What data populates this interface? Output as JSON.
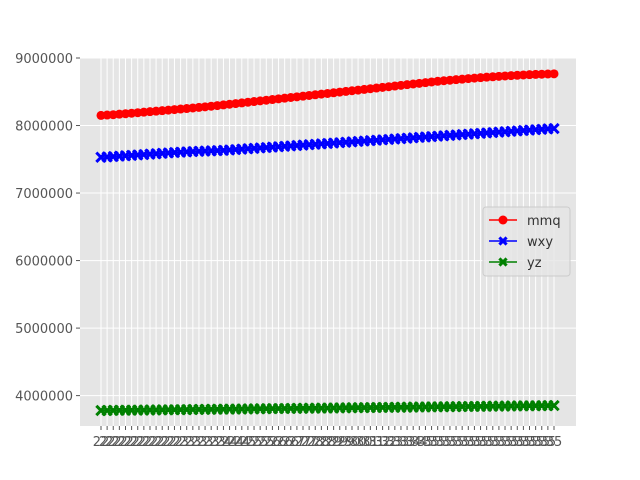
{
  "chart_data": {
    "type": "line",
    "title": "",
    "xlabel": "",
    "ylabel": "",
    "ylim": [
      3550000,
      9000000
    ],
    "yticks": [
      4000000,
      5000000,
      6000000,
      7000000,
      8000000,
      9000000
    ],
    "ytick_labels": [
      "4000000",
      "5000000",
      "6000000",
      "7000000",
      "8000000",
      "9000000"
    ],
    "x": [
      "22",
      "22",
      "22",
      "22",
      "22",
      "22",
      "22",
      "22",
      "22",
      "22",
      "22",
      "22",
      "22",
      "23",
      "23",
      "23",
      "23",
      "23",
      "23",
      "23",
      "24",
      "24",
      "24",
      "24",
      "25",
      "25",
      "25",
      "25",
      "26",
      "26",
      "26",
      "26",
      "27",
      "27",
      "27",
      "28",
      "28",
      "28",
      "29",
      "29",
      "29",
      "30",
      "30",
      "30",
      "31",
      "31",
      "32",
      "32",
      "33",
      "33",
      "33",
      "34",
      "34",
      "35",
      "35",
      "35",
      "35",
      "35",
      "35",
      "35",
      "35",
      "35",
      "35",
      "35",
      "35",
      "35",
      "35",
      "35",
      "35",
      "35",
      "35",
      "35",
      "35",
      "35",
      "35"
    ],
    "grid": true,
    "legend_position": "center-right",
    "series": [
      {
        "name": "mmq",
        "color": "#ff0000",
        "marker": "circle",
        "values": [
          8150000,
          8155000,
          8160000,
          8168000,
          8175000,
          8182000,
          8190000,
          8198000,
          8205000,
          8213000,
          8220000,
          8228000,
          8236000,
          8244000,
          8252000,
          8260000,
          8268000,
          8277000,
          8286000,
          8295000,
          8305000,
          8315000,
          8325000,
          8335000,
          8345000,
          8355000,
          8365000,
          8375000,
          8385000,
          8395000,
          8405000,
          8415000,
          8425000,
          8435000,
          8445000,
          8455000,
          8465000,
          8475000,
          8485000,
          8495000,
          8505000,
          8515000,
          8525000,
          8535000,
          8545000,
          8555000,
          8565000,
          8575000,
          8585000,
          8595000,
          8605000,
          8615000,
          8625000,
          8635000,
          8645000,
          8655000,
          8663000,
          8671000,
          8679000,
          8687000,
          8695000,
          8702000,
          8709000,
          8716000,
          8722000,
          8728000,
          8734000,
          8739000,
          8744000,
          8749000,
          8753000,
          8757000,
          8760000,
          8763000,
          8765000
        ]
      },
      {
        "name": "wxy",
        "color": "#0000ff",
        "marker": "x",
        "values": [
          7530000,
          7535000,
          7540000,
          7546000,
          7552000,
          7558000,
          7564000,
          7570000,
          7576000,
          7582000,
          7588000,
          7594000,
          7600000,
          7605000,
          7610000,
          7614000,
          7618000,
          7622000,
          7625000,
          7628000,
          7632000,
          7638000,
          7644000,
          7650000,
          7656000,
          7662000,
          7668000,
          7674000,
          7680000,
          7686000,
          7692000,
          7698000,
          7704000,
          7710000,
          7716000,
          7722000,
          7728000,
          7734000,
          7740000,
          7746000,
          7752000,
          7758000,
          7764000,
          7770000,
          7776000,
          7782000,
          7788000,
          7794000,
          7800000,
          7806000,
          7812000,
          7818000,
          7824000,
          7830000,
          7836000,
          7842000,
          7848000,
          7854000,
          7860000,
          7866000,
          7872000,
          7878000,
          7884000,
          7890000,
          7896000,
          7902000,
          7908000,
          7914000,
          7920000,
          7926000,
          7932000,
          7938000,
          7944000,
          7950000,
          7955000
        ]
      },
      {
        "name": "yz",
        "color": "#008000",
        "marker": "x",
        "values": [
          3780000,
          3780000,
          3781000,
          3782000,
          3783000,
          3784000,
          3785000,
          3786000,
          3787000,
          3788000,
          3789000,
          3790000,
          3791000,
          3792000,
          3793000,
          3794000,
          3795000,
          3796000,
          3797000,
          3798000,
          3799000,
          3800000,
          3801000,
          3802000,
          3803000,
          3804000,
          3805000,
          3806000,
          3807000,
          3808000,
          3809000,
          3810000,
          3811000,
          3812000,
          3813000,
          3814000,
          3815000,
          3816000,
          3817000,
          3818000,
          3819000,
          3820000,
          3821000,
          3822000,
          3823000,
          3824000,
          3825000,
          3826000,
          3827000,
          3828000,
          3829000,
          3830000,
          3831000,
          3832000,
          3833000,
          3834000,
          3835000,
          3836000,
          3837000,
          3838000,
          3839000,
          3840000,
          3841000,
          3842000,
          3843000,
          3844000,
          3845000,
          3846000,
          3847000,
          3848000,
          3849000,
          3850000,
          3851000,
          3852000,
          3853000
        ]
      }
    ]
  }
}
